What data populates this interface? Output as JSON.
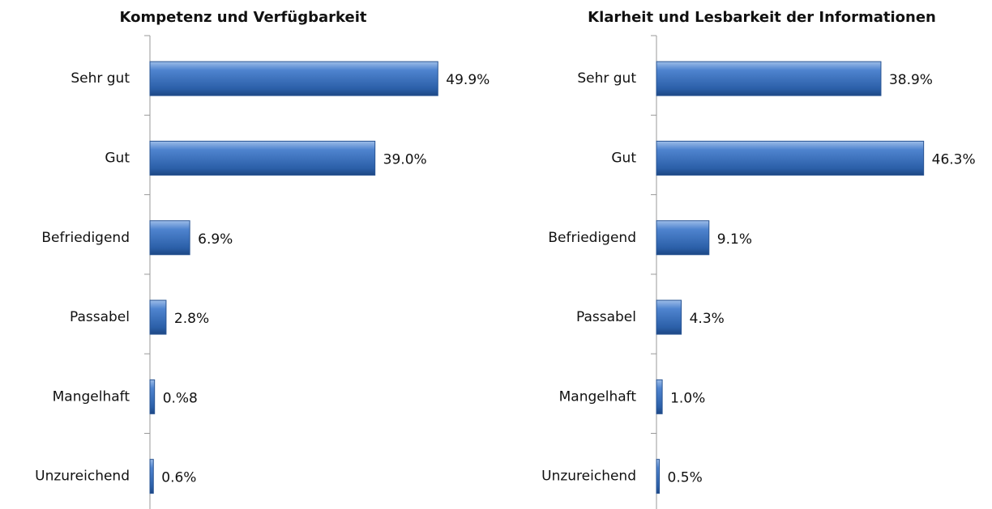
{
  "chart_data": [
    {
      "type": "bar",
      "orientation": "horizontal",
      "title": "Kompetenz und Verfügbarkeit",
      "categories": [
        "Sehr gut",
        "Gut",
        "Befriedigend",
        "Passabel",
        "Mangelhaft",
        "Unzureichend"
      ],
      "values": [
        49.9,
        39.0,
        6.9,
        2.8,
        0.8,
        0.6
      ],
      "value_labels": [
        "49.9%",
        "39.0%",
        "6.9%",
        "2.8%",
        "0.%8",
        "0.6%"
      ],
      "color": "#3a70bf",
      "xlim": [
        0,
        50
      ]
    },
    {
      "type": "bar",
      "orientation": "horizontal",
      "title": "Klarheit und Lesbarkeit der Informationen",
      "categories": [
        "Sehr gut",
        "Gut",
        "Befriedigend",
        "Passabel",
        "Mangelhaft",
        "Unzureichend"
      ],
      "values": [
        38.9,
        46.3,
        9.1,
        4.3,
        1.0,
        0.5
      ],
      "value_labels": [
        "38.9%",
        "46.3%",
        "9.1%",
        "4.3%",
        "1.0%",
        "0.5%"
      ],
      "color": "#3a70bf",
      "xlim": [
        0,
        50
      ]
    }
  ]
}
